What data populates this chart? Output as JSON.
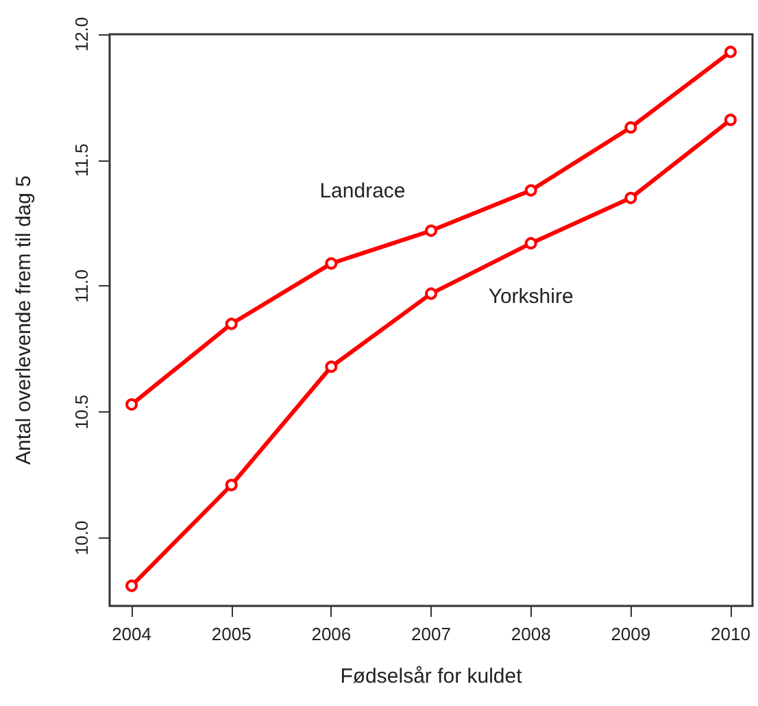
{
  "chart_data": {
    "type": "line",
    "xlabel": "Fødselsår for kuldet",
    "ylabel": "Antal overlevende frem til dag 5",
    "x": [
      2004,
      2005,
      2006,
      2007,
      2008,
      2009,
      2010
    ],
    "series": [
      {
        "name": "Landrace",
        "color": "#ff0000",
        "values": [
          10.53,
          10.85,
          11.09,
          11.22,
          11.38,
          11.63,
          11.93
        ]
      },
      {
        "name": "Yorkshire",
        "color": "#ff0000",
        "values": [
          9.81,
          10.21,
          10.68,
          10.97,
          11.17,
          11.35,
          11.66
        ]
      }
    ],
    "xlim": [
      2003.78,
      2010.22
    ],
    "xticks": [
      2004,
      2005,
      2006,
      2007,
      2008,
      2009,
      2010
    ],
    "ylim": [
      9.73,
      12.0
    ],
    "yticks": [
      {
        "value": 10,
        "label": "10.0"
      },
      10.5,
      {
        "value": 11,
        "label": "11.0"
      },
      11.5,
      {
        "value": 12,
        "label": "12.0"
      }
    ],
    "grid": false,
    "marker": "circle",
    "line_style": "solid"
  }
}
